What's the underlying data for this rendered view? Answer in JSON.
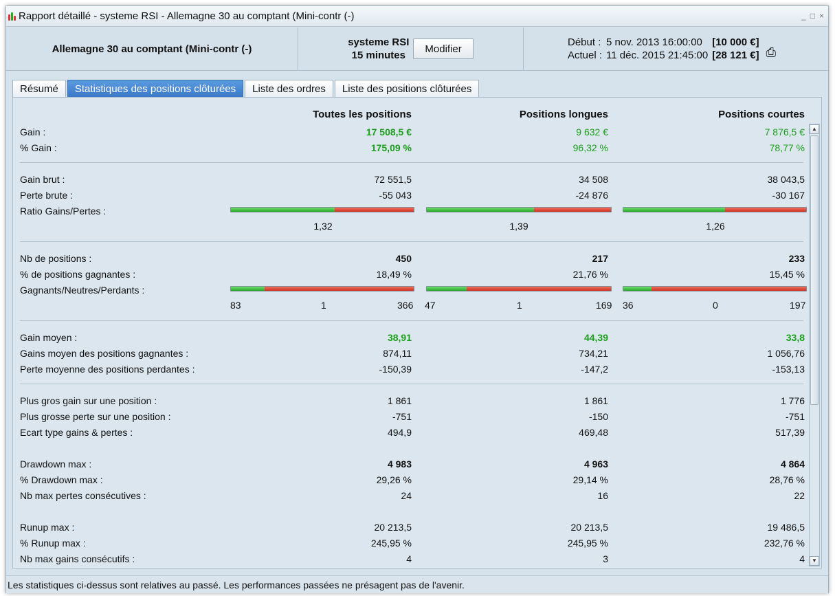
{
  "window": {
    "title": "Rapport détaillé - systeme RSI - Allemagne 30 au comptant (Mini-contr (-)",
    "controls": [
      "_",
      "□",
      "×"
    ]
  },
  "header": {
    "instrument": "Allemagne 30 au comptant (Mini-contr (-)",
    "system_name": "systeme RSI",
    "timeframe": "15 minutes",
    "modify_button": "Modifier",
    "start_label": "Début :",
    "start_date": "5 nov. 2013 16:00:00",
    "start_capital": "[10 000 €]",
    "current_label": "Actuel :",
    "current_date": "11 déc. 2015 21:45:00",
    "current_capital": "[28 121 €]",
    "print_icon": "printer-icon"
  },
  "tabs": [
    {
      "label": "Résumé",
      "active": false
    },
    {
      "label": "Statistiques des positions clôturées",
      "active": true
    },
    {
      "label": "Liste des ordres",
      "active": false
    },
    {
      "label": "Liste des positions clôturées",
      "active": false
    }
  ],
  "columns": [
    "Toutes les positions",
    "Positions longues",
    "Positions courtes"
  ],
  "stats": {
    "gain": {
      "label": "Gain :",
      "values": [
        "17 508,5 €",
        "9 632 €",
        "7 876,5 €"
      ]
    },
    "pct_gain": {
      "label": "% Gain :",
      "values": [
        "175,09 %",
        "96,32 %",
        "78,77 %"
      ]
    },
    "gross_gain": {
      "label": "Gain brut :",
      "values": [
        "72 551,5",
        "34 508",
        "38 043,5"
      ]
    },
    "gross_loss": {
      "label": "Perte brute :",
      "values": [
        "-55 043",
        "-24 876",
        "-30 167"
      ]
    },
    "ratio": {
      "label": "Ratio Gains/Pertes :",
      "values": [
        "1,32",
        "1,39",
        "1,26"
      ],
      "fill": [
        0.569,
        0.581,
        0.558
      ]
    },
    "nb_positions": {
      "label": "Nb de positions :",
      "values": [
        "450",
        "217",
        "233"
      ]
    },
    "pct_winning": {
      "label": "% de positions gagnantes :",
      "values": [
        "18,49 %",
        "21,76 %",
        "15,45 %"
      ]
    },
    "wnl": {
      "label": "Gagnants/Neutres/Perdants :",
      "counts": [
        [
          "83",
          "1",
          "366"
        ],
        [
          "47",
          "1",
          "169"
        ],
        [
          "36",
          "0",
          "197"
        ]
      ],
      "fill": [
        0.1849,
        0.2176,
        0.1545
      ]
    },
    "avg_gain": {
      "label": "Gain moyen :",
      "values": [
        "38,91",
        "44,39",
        "33,8"
      ]
    },
    "avg_win": {
      "label": "Gains moyen des positions gagnantes :",
      "values": [
        "874,11",
        "734,21",
        "1 056,76"
      ]
    },
    "avg_loss": {
      "label": "Perte moyenne des positions perdantes :",
      "values": [
        "-150,39",
        "-147,2",
        "-153,13"
      ]
    },
    "max_gain": {
      "label": "Plus gros gain sur une position :",
      "values": [
        "1 861",
        "1 861",
        "1 776"
      ]
    },
    "max_loss": {
      "label": "Plus grosse perte sur une position :",
      "values": [
        "-751",
        "-150",
        "-751"
      ]
    },
    "stdev": {
      "label": "Ecart type gains & pertes :",
      "values": [
        "494,9",
        "469,48",
        "517,39"
      ]
    },
    "drawdown": {
      "label": "Drawdown max :",
      "values": [
        "4 983",
        "4 963",
        "4 864"
      ]
    },
    "pct_drawdown": {
      "label": "% Drawdown max :",
      "values": [
        "29,26 %",
        "29,14 %",
        "28,76 %"
      ]
    },
    "max_consec_loss": {
      "label": "Nb max pertes consécutives :",
      "values": [
        "24",
        "16",
        "22"
      ]
    },
    "runup": {
      "label": "Runup max :",
      "values": [
        "20 213,5",
        "20 213,5",
        "19 486,5"
      ]
    },
    "pct_runup": {
      "label": "% Runup max :",
      "values": [
        "245,95 %",
        "245,95 %",
        "232,76 %"
      ]
    },
    "max_consec_win": {
      "label": "Nb max gains consécutifs :",
      "values": [
        "4",
        "3",
        "4"
      ]
    }
  },
  "footer": "Les statistiques ci-dessus sont relatives au passé. Les performances passées ne présagent pas de l'avenir.",
  "colors": {
    "positive": "#1b9e1b",
    "bar_green": "#27a827",
    "bar_red": "#d03020",
    "active_tab": "#3a78c8"
  }
}
